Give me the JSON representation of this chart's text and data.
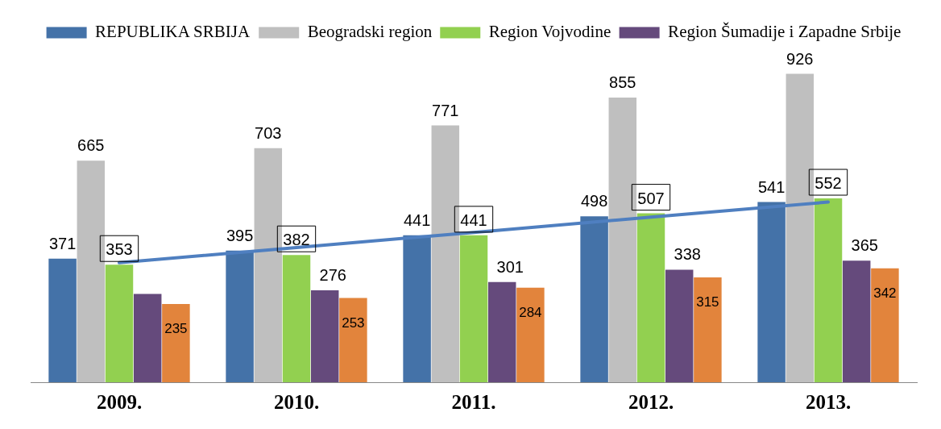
{
  "chart_data": {
    "type": "bar",
    "categories": [
      "2009.",
      "2010.",
      "2011.",
      "2012.",
      "2013."
    ],
    "tick_labels": "x",
    "grid": false,
    "legend": "top",
    "series": [
      {
        "name": "REPUBLIKA SRBIJA",
        "color": "#4472a8",
        "values": [
          371,
          395,
          441,
          498,
          541
        ],
        "value_labels": [
          "371",
          "395",
          "441",
          "498",
          "541"
        ]
      },
      {
        "name": "Beogradski region",
        "color": "#bfbfbf",
        "values": [
          665,
          703,
          771,
          855,
          926
        ],
        "value_labels": [
          "665",
          "703",
          "771",
          "855",
          "926"
        ]
      },
      {
        "name": "Region Vojvodine",
        "color": "#92d050",
        "values": [
          353,
          382,
          441,
          507,
          552
        ],
        "value_labels": [
          "353",
          "382",
          "441",
          "507",
          "552"
        ]
      },
      {
        "name": "Region Šumadije i Zapadne Srbije",
        "color": "#654a7c",
        "values": [
          265,
          276,
          301,
          338,
          365
        ],
        "value_labels": [
          null,
          "276",
          "301",
          "338",
          "365"
        ]
      },
      {
        "color": "#e2843c",
        "values": [
          235,
          253,
          284,
          315,
          342
        ],
        "value_labels": [
          "235",
          "253",
          "284",
          "315",
          "342"
        ]
      },
      {
        "type": "line",
        "color": "#4f7fc0",
        "x": [
          "2009.",
          "2010.",
          "2011.",
          "2012.",
          "2013."
        ],
        "values": [
          359,
          404.5,
          450,
          495.5,
          541
        ],
        "marker": "none"
      }
    ]
  }
}
